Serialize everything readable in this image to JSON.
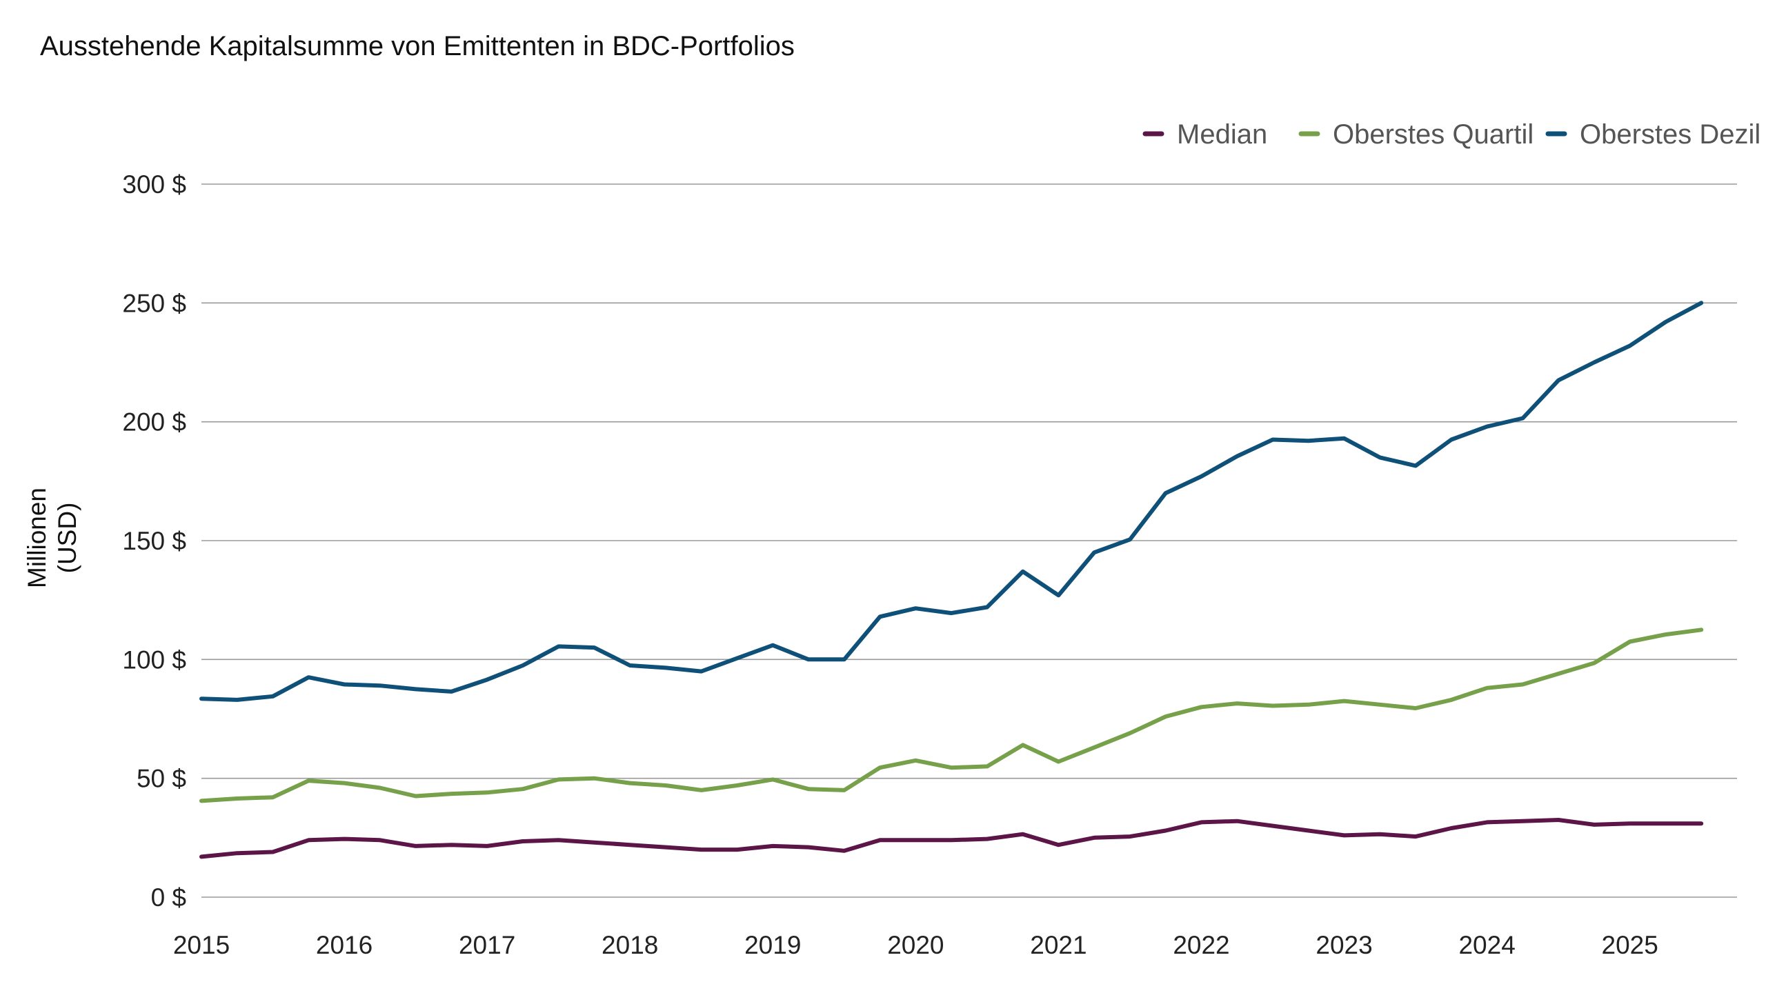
{
  "chart_data": {
    "type": "line",
    "title": "Ausstehende Kapitalsumme von Emittenten in BDC-Portfolios",
    "ylabel_lines": [
      "Millionen",
      "(USD)"
    ],
    "xlabel": "",
    "ylim": [
      0,
      300
    ],
    "xlim": [
      2015,
      2025.75
    ],
    "y_ticks": [
      {
        "value": 0,
        "label": "0 $"
      },
      {
        "value": 50,
        "label": "50 $"
      },
      {
        "value": 100,
        "label": "100 $"
      },
      {
        "value": 150,
        "label": "150 $"
      },
      {
        "value": 200,
        "label": "200 $"
      },
      {
        "value": 250,
        "label": "250 $"
      },
      {
        "value": 300,
        "label": "300 $"
      }
    ],
    "x_ticks": [
      {
        "value": 2015,
        "label": "2015"
      },
      {
        "value": 2016,
        "label": "2016"
      },
      {
        "value": 2017,
        "label": "2017"
      },
      {
        "value": 2018,
        "label": "2018"
      },
      {
        "value": 2019,
        "label": "2019"
      },
      {
        "value": 2020,
        "label": "2020"
      },
      {
        "value": 2021,
        "label": "2021"
      },
      {
        "value": 2022,
        "label": "2022"
      },
      {
        "value": 2023,
        "label": "2023"
      },
      {
        "value": 2024,
        "label": "2024"
      },
      {
        "value": 2025,
        "label": "2025"
      }
    ],
    "grid": true,
    "legend_position": "top-right",
    "x": [
      2015.0,
      2015.25,
      2015.5,
      2015.75,
      2016.0,
      2016.25,
      2016.5,
      2016.75,
      2017.0,
      2017.25,
      2017.5,
      2017.75,
      2018.0,
      2018.25,
      2018.5,
      2018.75,
      2019.0,
      2019.25,
      2019.5,
      2019.75,
      2020.0,
      2020.25,
      2020.5,
      2020.75,
      2021.0,
      2021.25,
      2021.5,
      2021.75,
      2022.0,
      2022.25,
      2022.5,
      2022.75,
      2023.0,
      2023.25,
      2023.5,
      2023.75,
      2024.0,
      2024.25,
      2024.5,
      2024.75,
      2025.0,
      2025.25,
      2025.5
    ],
    "series": [
      {
        "name": "Median",
        "color": "#5b1547",
        "values": [
          17,
          18.5,
          19,
          24,
          24.5,
          24,
          21.5,
          22,
          21.5,
          23.5,
          24,
          23,
          22,
          21,
          20,
          20,
          21.5,
          21,
          19.5,
          24,
          24,
          24,
          24.5,
          26.5,
          22,
          25,
          25.5,
          28,
          31.5,
          32,
          30,
          28,
          26,
          26.5,
          25.5,
          29,
          31.5,
          32,
          32.5,
          30.5,
          31,
          31,
          31
        ]
      },
      {
        "name": "Oberstes Quartil",
        "color": "#76a04a",
        "values": [
          40.5,
          41.5,
          42,
          49,
          48,
          46,
          42.5,
          43.5,
          44,
          45.5,
          49.5,
          50,
          48,
          47,
          45,
          47,
          49.5,
          45.5,
          45,
          54.5,
          57.5,
          54.5,
          55,
          64,
          57,
          63,
          69,
          76,
          80,
          81.5,
          80.5,
          81,
          82.5,
          81,
          79.5,
          83,
          88,
          89.5,
          94,
          98.5,
          107.5,
          110.5,
          112.5
        ]
      },
      {
        "name": "Oberstes Dezil",
        "color": "#0f5079",
        "values": [
          83.5,
          83,
          84.5,
          92.5,
          89.5,
          89,
          87.5,
          86.5,
          91.5,
          97.5,
          105.5,
          105,
          97.5,
          96.5,
          95,
          100.5,
          106,
          100,
          100,
          118,
          121.5,
          119.5,
          122,
          137,
          127,
          145,
          150.5,
          170,
          177,
          185.5,
          192.5,
          192,
          193,
          185,
          181.5,
          192.5,
          198,
          201.5,
          217.5,
          225,
          232,
          242,
          250
        ]
      }
    ]
  }
}
